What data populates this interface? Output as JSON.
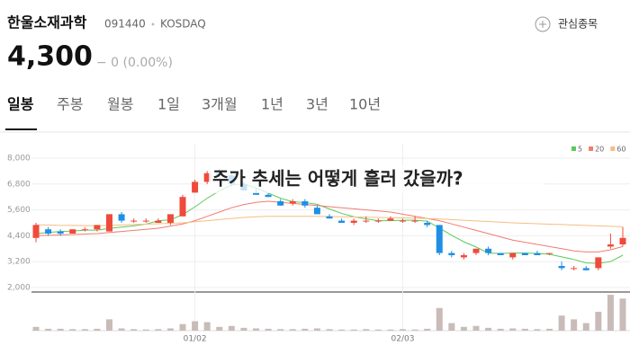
{
  "header": {
    "name": "한울소재과학",
    "code": "091440",
    "market": "KOSDAQ",
    "watch_button": "관심종목",
    "price": "4,300",
    "change": "− 0 (0.00%)"
  },
  "tabs": [
    "일봉",
    "주봉",
    "월봉",
    "1일",
    "3개월",
    "1년",
    "3년",
    "10년"
  ],
  "overlay_text": "주가 추세는 어떻게 흘러 갔을까?",
  "chart_data": {
    "type": "candlestick",
    "categories": [
      null,
      null,
      null,
      null,
      null,
      null,
      null,
      null,
      null,
      null,
      null,
      null,
      null,
      "01/02",
      null,
      null,
      null,
      null,
      null,
      null,
      null,
      null,
      null,
      null,
      null,
      null,
      null,
      null,
      null,
      null,
      "02/03",
      null,
      null,
      null,
      null,
      null,
      null,
      null,
      null,
      null,
      null,
      null,
      null,
      null,
      null,
      null,
      null,
      null,
      null
    ],
    "ohlc": [
      [
        4300,
        5000,
        4100,
        4900
      ],
      [
        4700,
        4800,
        4400,
        4500
      ],
      [
        4600,
        4700,
        4400,
        4500
      ],
      [
        4500,
        4700,
        4500,
        4700
      ],
      [
        4700,
        4800,
        4600,
        4700
      ],
      [
        4700,
        4900,
        4600,
        4900
      ],
      [
        4600,
        5400,
        4600,
        5400
      ],
      [
        5400,
        5500,
        5000,
        5100
      ],
      [
        5100,
        5200,
        5000,
        5100
      ],
      [
        5100,
        5200,
        5000,
        5100
      ],
      [
        5000,
        5200,
        5000,
        5100
      ],
      [
        5000,
        5400,
        4900,
        5400
      ],
      [
        5300,
        6300,
        5300,
        6200
      ],
      [
        6400,
        7000,
        6400,
        6900
      ],
      [
        6900,
        7400,
        6800,
        7300
      ],
      [
        7300,
        7500,
        7100,
        7200
      ],
      [
        7200,
        7300,
        6700,
        6800
      ],
      [
        6800,
        6900,
        6500,
        6500
      ],
      [
        6400,
        6600,
        6300,
        6300
      ],
      [
        6300,
        6400,
        6200,
        6200
      ],
      [
        6000,
        6100,
        5800,
        5800
      ],
      [
        5900,
        6100,
        5800,
        6000
      ],
      [
        6000,
        6100,
        5700,
        5800
      ],
      [
        5700,
        5800,
        5400,
        5400
      ],
      [
        5300,
        5400,
        5200,
        5200
      ],
      [
        5100,
        5200,
        5000,
        5000
      ],
      [
        5000,
        5200,
        4900,
        5100
      ],
      [
        5100,
        5300,
        5000,
        5100
      ],
      [
        5100,
        5200,
        5000,
        5100
      ],
      [
        5100,
        5300,
        5100,
        5200
      ],
      [
        5100,
        5200,
        5000,
        5100
      ],
      [
        5100,
        5300,
        5000,
        5100
      ],
      [
        5000,
        5100,
        4800,
        4900
      ],
      [
        4900,
        4900,
        3500,
        3600
      ],
      [
        3600,
        3700,
        3400,
        3500
      ],
      [
        3400,
        3600,
        3300,
        3500
      ],
      [
        3600,
        3800,
        3500,
        3800
      ],
      [
        3800,
        3900,
        3500,
        3600
      ],
      [
        3600,
        3600,
        3500,
        3500
      ],
      [
        3400,
        3600,
        3300,
        3600
      ],
      [
        3600,
        3600,
        3500,
        3500
      ],
      [
        3600,
        3700,
        3500,
        3500
      ],
      [
        3600,
        3600,
        3500,
        3600
      ],
      [
        3000,
        3200,
        2800,
        2900
      ],
      [
        2900,
        3000,
        2800,
        2900
      ],
      [
        2900,
        3000,
        2800,
        2800
      ],
      [
        2900,
        3400,
        2800,
        3400
      ],
      [
        3900,
        4500,
        3800,
        4000
      ],
      [
        4000,
        4800,
        3900,
        4300
      ]
    ],
    "up_color": "#f04a3b",
    "down_color": "#1f8fe5",
    "series": [
      {
        "name": "5",
        "color": "#5cc95c",
        "values": [
          4500,
          4550,
          4600,
          4620,
          4660,
          4660,
          4740,
          4800,
          4860,
          4940,
          5100,
          5140,
          5380,
          5740,
          6140,
          6480,
          6760,
          6800,
          6620,
          6380,
          6140,
          5980,
          5940,
          5860,
          5640,
          5440,
          5280,
          5180,
          5100,
          5100,
          5120,
          5120,
          5080,
          4760,
          4420,
          4120,
          3880,
          3600,
          3580,
          3600,
          3600,
          3580,
          3540,
          3420,
          3300,
          3140,
          3120,
          3200,
          3500
        ]
      },
      {
        "name": "20",
        "color": "#f07c72",
        "values": [
          4400,
          4420,
          4440,
          4460,
          4480,
          4500,
          4550,
          4600,
          4650,
          4700,
          4750,
          4850,
          4950,
          5100,
          5300,
          5500,
          5700,
          5850,
          5950,
          6000,
          5950,
          5900,
          5850,
          5800,
          5750,
          5700,
          5650,
          5600,
          5550,
          5500,
          5400,
          5300,
          5200,
          5100,
          4950,
          4800,
          4650,
          4500,
          4350,
          4200,
          4100,
          4000,
          3900,
          3800,
          3700,
          3650,
          3650,
          3750,
          3900
        ]
      },
      {
        "name": "60",
        "color": "#f5be82",
        "values": [
          4900,
          4900,
          4880,
          4880,
          4870,
          4870,
          4880,
          4900,
          4920,
          4940,
          4960,
          4980,
          5000,
          5050,
          5100,
          5150,
          5200,
          5250,
          5280,
          5300,
          5300,
          5300,
          5300,
          5300,
          5290,
          5280,
          5270,
          5260,
          5250,
          5240,
          5230,
          5220,
          5200,
          5180,
          5150,
          5120,
          5090,
          5060,
          5030,
          5000,
          4980,
          4960,
          4940,
          4920,
          4900,
          4880,
          4860,
          4840,
          4820
        ]
      }
    ],
    "volume": [
      20,
      10,
      10,
      8,
      8,
      10,
      60,
      12,
      8,
      6,
      8,
      12,
      35,
      50,
      45,
      20,
      25,
      15,
      12,
      10,
      8,
      8,
      10,
      12,
      8,
      6,
      6,
      8,
      6,
      6,
      8,
      6,
      10,
      120,
      40,
      20,
      25,
      15,
      10,
      12,
      10,
      8,
      10,
      80,
      60,
      40,
      100,
      190,
      170
    ],
    "volume_color": "#c9bcb8",
    "volume_ylim": [
      0,
      200
    ],
    "ylim": [
      2000,
      8000
    ],
    "yticks": [
      {
        "value": 2000,
        "label": "2,000"
      },
      {
        "value": 3200,
        "label": "3,200"
      },
      {
        "value": 4400,
        "label": "4,400"
      },
      {
        "value": 5600,
        "label": "5,600"
      },
      {
        "value": 6800,
        "label": "6,800"
      },
      {
        "value": 8000,
        "label": "8,000"
      }
    ],
    "grid": true,
    "legend": "top-right"
  }
}
